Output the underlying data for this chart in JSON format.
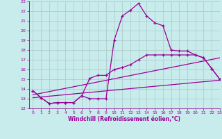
{
  "xlabel": "Windchill (Refroidissement éolien,°C)",
  "background_color": "#c8ecec",
  "line_color": "#990099",
  "grid_color": "#b0cccc",
  "xlim": [
    -0.5,
    23
  ],
  "ylim": [
    12,
    23
  ],
  "yticks": [
    12,
    13,
    14,
    15,
    16,
    17,
    18,
    19,
    20,
    21,
    22,
    23
  ],
  "xticks": [
    0,
    1,
    2,
    3,
    4,
    5,
    6,
    7,
    8,
    9,
    10,
    11,
    12,
    13,
    14,
    15,
    16,
    17,
    18,
    19,
    20,
    21,
    22,
    23
  ],
  "line1_x": [
    0,
    1,
    2,
    3,
    4,
    5,
    6,
    7,
    8,
    9,
    10,
    11,
    12,
    13,
    14,
    15,
    16,
    17,
    18,
    19,
    20,
    21,
    22,
    23
  ],
  "line1_y": [
    13.8,
    13.1,
    12.5,
    12.6,
    12.6,
    12.6,
    13.3,
    13.0,
    13.0,
    13.0,
    19.0,
    21.5,
    22.1,
    22.8,
    21.5,
    20.8,
    20.5,
    18.0,
    17.9,
    17.9,
    17.5,
    17.2,
    16.1,
    15.0
  ],
  "line2_x": [
    0,
    1,
    2,
    3,
    4,
    5,
    6,
    7,
    8,
    9,
    10,
    11,
    12,
    13,
    14,
    15,
    16,
    17,
    18,
    19,
    20,
    21,
    22,
    23
  ],
  "line2_y": [
    13.8,
    13.1,
    12.5,
    12.6,
    12.6,
    12.6,
    13.3,
    15.1,
    15.4,
    15.4,
    16.0,
    16.2,
    16.5,
    17.0,
    17.5,
    17.5,
    17.5,
    17.5,
    17.5,
    17.5,
    17.5,
    17.2,
    16.1,
    15.0
  ],
  "line3_x": [
    0,
    23
  ],
  "line3_y": [
    13.4,
    17.2
  ],
  "line4_x": [
    0,
    23
  ],
  "line4_y": [
    13.1,
    14.9
  ]
}
